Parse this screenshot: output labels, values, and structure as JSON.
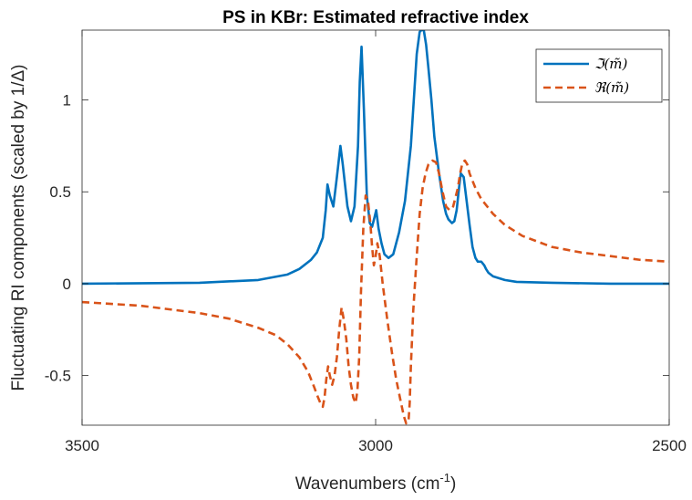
{
  "chart_data": {
    "type": "line",
    "title": "PS in KBr: Estimated refractive index",
    "xlabel": "Wavenumbers (cm",
    "xlabel_sup": "-1",
    "xlabel_suffix": ")",
    "ylabel": "Fluctuating RI components (scaled by 1/Δ)",
    "xlim": [
      3500,
      2500
    ],
    "x_reversed": true,
    "ylim": [
      -0.77,
      1.38
    ],
    "xticks": [
      3500,
      3000,
      2500
    ],
    "xtick_labels": [
      "3500",
      "3000",
      "2500"
    ],
    "yticks": [
      -0.5,
      0,
      0.5,
      1
    ],
    "ytick_labels": [
      "-0.5",
      "0",
      "0.5",
      "1"
    ],
    "grid": false,
    "legend_position": "top-right",
    "series": [
      {
        "name": "ℑ(m̃)",
        "color": "#0072BD",
        "style": "solid",
        "x": [
          3500,
          3300,
          3200,
          3150,
          3130,
          3110,
          3100,
          3090,
          3085,
          3082,
          3078,
          3072,
          3066,
          3060,
          3056,
          3048,
          3042,
          3036,
          3030,
          3027,
          3024,
          3020,
          3015,
          3010,
          3006,
          3002,
          2999,
          2995,
          2990,
          2985,
          2978,
          2970,
          2960,
          2950,
          2940,
          2935,
          2930,
          2925,
          2922,
          2918,
          2914,
          2910,
          2905,
          2900,
          2892,
          2885,
          2880,
          2876,
          2870,
          2866,
          2862,
          2858,
          2855,
          2850,
          2845,
          2840,
          2835,
          2830,
          2826,
          2820,
          2815,
          2812,
          2808,
          2800,
          2780,
          2760,
          2700,
          2600,
          2500
        ],
        "values": [
          0.0,
          0.005,
          0.02,
          0.05,
          0.08,
          0.13,
          0.17,
          0.25,
          0.4,
          0.54,
          0.48,
          0.42,
          0.58,
          0.75,
          0.65,
          0.42,
          0.34,
          0.42,
          0.75,
          1.1,
          1.29,
          0.95,
          0.48,
          0.33,
          0.31,
          0.36,
          0.4,
          0.3,
          0.22,
          0.16,
          0.14,
          0.16,
          0.28,
          0.45,
          0.75,
          1.0,
          1.25,
          1.37,
          1.38,
          1.38,
          1.3,
          1.17,
          1.0,
          0.8,
          0.6,
          0.45,
          0.38,
          0.35,
          0.33,
          0.34,
          0.4,
          0.52,
          0.6,
          0.58,
          0.45,
          0.32,
          0.2,
          0.14,
          0.12,
          0.12,
          0.1,
          0.08,
          0.06,
          0.04,
          0.02,
          0.01,
          0.005,
          0.0,
          0.0
        ]
      },
      {
        "name": "ℜ(m̃)",
        "color": "#D95319",
        "style": "dashed",
        "x": [
          3500,
          3450,
          3400,
          3350,
          3300,
          3250,
          3200,
          3170,
          3150,
          3130,
          3115,
          3105,
          3098,
          3094,
          3090,
          3087,
          3084,
          3081,
          3078,
          3074,
          3070,
          3066,
          3062,
          3058,
          3054,
          3050,
          3046,
          3042,
          3038,
          3034,
          3031,
          3028,
          3025,
          3021,
          3017,
          3013,
          3009,
          3006,
          3003,
          3000,
          2997,
          2993,
          2988,
          2980,
          2972,
          2965,
          2958,
          2952,
          2948,
          2944,
          2942,
          2940,
          2936,
          2930,
          2925,
          2920,
          2915,
          2910,
          2903,
          2897,
          2892,
          2886,
          2880,
          2874,
          2868,
          2864,
          2860,
          2856,
          2852,
          2848,
          2844,
          2840,
          2830,
          2820,
          2800,
          2780,
          2750,
          2700,
          2650,
          2600,
          2550,
          2500
        ],
        "values": [
          -0.1,
          -0.11,
          -0.12,
          -0.14,
          -0.16,
          -0.19,
          -0.24,
          -0.28,
          -0.33,
          -0.4,
          -0.48,
          -0.56,
          -0.62,
          -0.65,
          -0.67,
          -0.62,
          -0.52,
          -0.45,
          -0.5,
          -0.55,
          -0.5,
          -0.4,
          -0.25,
          -0.13,
          -0.2,
          -0.3,
          -0.45,
          -0.55,
          -0.62,
          -0.65,
          -0.58,
          -0.4,
          -0.05,
          0.3,
          0.48,
          0.45,
          0.33,
          0.2,
          0.1,
          0.15,
          0.22,
          0.15,
          0.0,
          -0.2,
          -0.38,
          -0.52,
          -0.63,
          -0.72,
          -0.76,
          -0.75,
          -0.65,
          -0.45,
          -0.15,
          0.15,
          0.38,
          0.52,
          0.6,
          0.65,
          0.67,
          0.66,
          0.6,
          0.5,
          0.42,
          0.4,
          0.42,
          0.47,
          0.52,
          0.6,
          0.66,
          0.67,
          0.65,
          0.6,
          0.52,
          0.46,
          0.38,
          0.32,
          0.26,
          0.2,
          0.17,
          0.15,
          0.13,
          0.12
        ]
      }
    ]
  }
}
